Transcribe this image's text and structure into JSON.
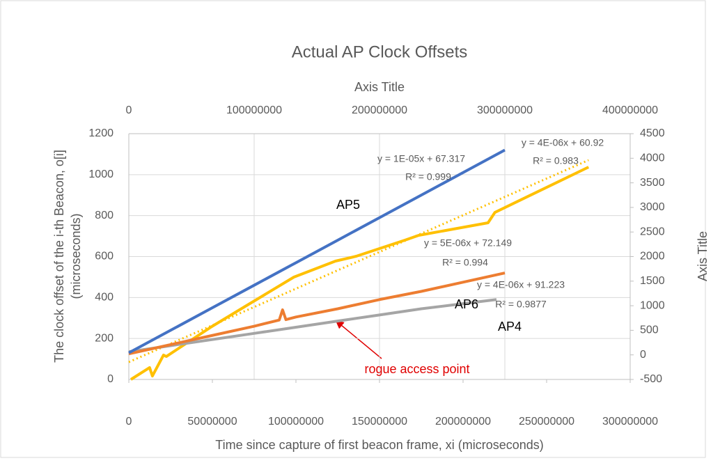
{
  "chart_data": {
    "type": "line",
    "title": "Actual AP Clock Offsets",
    "xlabel": "Time since capture of first beacon frame, xi (microseconds)",
    "ylabel": [
      "The clock offset of the i-th Beacon, o[i]",
      "(microseconds)"
    ],
    "x2label": "Axis Title",
    "y2label": "Axis Title",
    "xlim": [
      0,
      300000000
    ],
    "xticks": [
      0,
      50000000,
      100000000,
      150000000,
      200000000,
      250000000,
      300000000
    ],
    "ylim": [
      0,
      1200
    ],
    "yticks": [
      0,
      200,
      400,
      600,
      800,
      1000,
      1200
    ],
    "x2lim": [
      0,
      400000000
    ],
    "x2ticks": [
      0,
      100000000,
      200000000,
      300000000,
      400000000
    ],
    "y2lim": [
      -500,
      4500
    ],
    "y2ticks": [
      -500,
      0,
      500,
      1000,
      1500,
      2000,
      2500,
      3000,
      3500,
      4000,
      4500
    ],
    "grid": true,
    "series": [
      {
        "color": "#ffc000",
        "axis": "y2",
        "x": [
          1660000,
          16600000,
          18800000,
          27700000,
          29900000,
          65300000,
          92900000,
          131700000,
          164900000,
          181500000,
          220200000,
          231300000,
          286600000,
          292100000,
          366800000
        ],
        "values": [
          -500,
          -259,
          -430,
          -4,
          -33,
          562,
          987,
          1582,
          1908,
          2007,
          2333,
          2432,
          2687,
          2899,
          3820
        ]
      },
      {
        "color": "#ffc000",
        "axis": "y2",
        "dash": true,
        "x": [
          0,
          366800000
        ],
        "values": [
          -146,
          3962
        ]
      },
      {
        "color": "#a5a5a5",
        "x": [
          0,
          25000000,
          50000000,
          75000000,
          100000000,
          125000000,
          150000000,
          175000000,
          200000000,
          220000000
        ],
        "values": [
          135,
          165,
          195,
          225,
          255,
          285,
          315,
          345,
          370,
          390
        ]
      },
      {
        "color": "#ed7d31",
        "x": [
          0,
          25000000,
          50000000,
          75000000,
          90000000,
          92000000,
          94000000,
          100000000,
          125000000,
          150000000,
          175000000,
          200000000,
          225000000
        ],
        "values": [
          125,
          170,
          215,
          260,
          290,
          340,
          292,
          305,
          345,
          390,
          430,
          475,
          520
        ]
      },
      {
        "color": "#4472c4",
        "x": [
          0,
          25000000,
          50000000,
          75000000,
          100000000,
          125000000,
          150000000,
          175000000,
          200000000,
          225000000
        ],
        "values": [
          130,
          240,
          350,
          460,
          570,
          680,
          790,
          900,
          1010,
          1120
        ]
      }
    ],
    "annotations": [
      "y = 1E-05x + 67.317",
      "R² = 0.999",
      "y = 4E-06x + 60.92",
      "R² = 0.983",
      "y = 5E-06x + 72.149",
      "R² = 0.994",
      "y = 4E-06x + 91.223",
      "R² = 0.9877",
      "AP5",
      "AP6",
      "AP4",
      "rogue access point"
    ]
  }
}
